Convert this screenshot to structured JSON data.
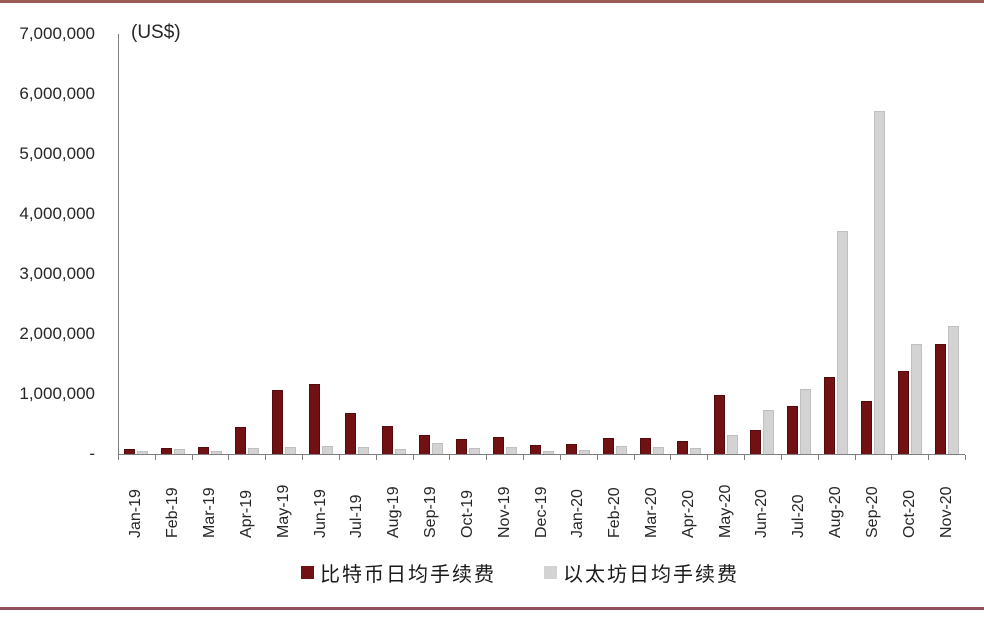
{
  "chart_data": {
    "type": "bar",
    "title": "",
    "unit_label": "(US$)",
    "categories": [
      "Jan-19",
      "Feb-19",
      "Mar-19",
      "Apr-19",
      "May-19",
      "Jun-19",
      "Jul-19",
      "Aug-19",
      "Sep-19",
      "Oct-19",
      "Nov-19",
      "Dec-19",
      "Jan-20",
      "Feb-20",
      "Mar-20",
      "Apr-20",
      "May-20",
      "Jun-20",
      "Jul-20",
      "Aug-20",
      "Sep-20",
      "Oct-20",
      "Nov-20"
    ],
    "series": [
      {
        "name": "比特币日均手续费",
        "color": "#721114",
        "border_color": "#530b0d",
        "values": [
          90000,
          105000,
          120000,
          450000,
          1060000,
          1160000,
          680000,
          470000,
          310000,
          250000,
          275000,
          150000,
          165000,
          260000,
          265000,
          215000,
          990000,
          400000,
          800000,
          1280000,
          875000,
          1380000,
          1840000
        ]
      },
      {
        "name": "以太坊日均手续费",
        "color": "#d3d3d3",
        "border_color": "#bfbfbf",
        "values": [
          55000,
          80000,
          55000,
          95000,
          115000,
          140000,
          110000,
          90000,
          185000,
          95000,
          115000,
          50000,
          65000,
          130000,
          120000,
          95000,
          310000,
          730000,
          1080000,
          3720000,
          5720000,
          1830000,
          2130000
        ]
      }
    ],
    "ylim": [
      0,
      7000000
    ],
    "ytick_interval": 1000000,
    "ytick_labels": [
      "-",
      "1,000,000",
      "2,000,000",
      "3,000,000",
      "4,000,000",
      "5,000,000",
      "6,000,000",
      "7,000,000"
    ],
    "legend_position": "bottom",
    "grid": false
  },
  "colors": {
    "top_rule": "#9c5b54",
    "bottom_rule": "#8f505c",
    "axis": "#7f7f7f",
    "text": "#262626"
  }
}
